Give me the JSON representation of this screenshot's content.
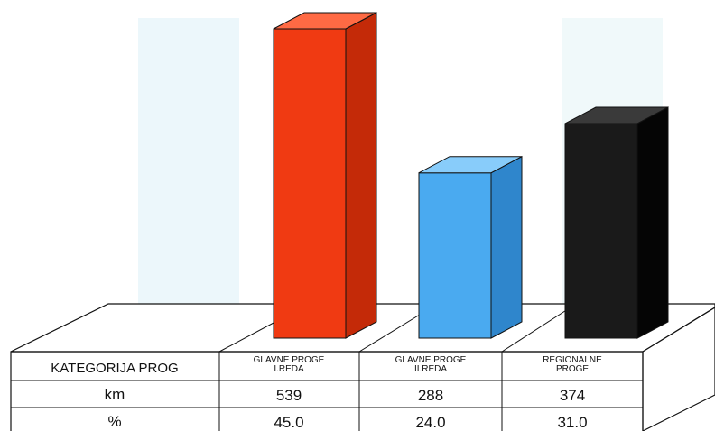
{
  "chart_data": {
    "type": "bar",
    "title": "",
    "xlabel": "",
    "ylabel": "",
    "categories": [
      [
        "GLAVNE PROGE",
        "I.REDA"
      ],
      [
        "GLAVNE PROGE",
        "II.REDA"
      ],
      [
        "REGIONALNE",
        "PROGE"
      ]
    ],
    "series": [
      {
        "values": [
          539,
          288,
          374
        ]
      }
    ],
    "percent": [
      "45.0",
      "24.0",
      "31.0"
    ],
    "km": [
      "539",
      "288",
      "374"
    ],
    "colors": [
      "#f03a12",
      "#4aaaf0",
      "#1a1a1a"
    ],
    "side_colors": [
      "#c42a08",
      "#2f86cc",
      "#050505"
    ],
    "top_colors": [
      "#ff6a44",
      "#88ccfa",
      "#3a3a3a"
    ],
    "ylim": [
      0,
      560
    ],
    "grid": false,
    "legend": "none"
  },
  "table": {
    "header_label": "KATEGORIJA PROG",
    "row1_label": "km",
    "row2_label": "%"
  }
}
